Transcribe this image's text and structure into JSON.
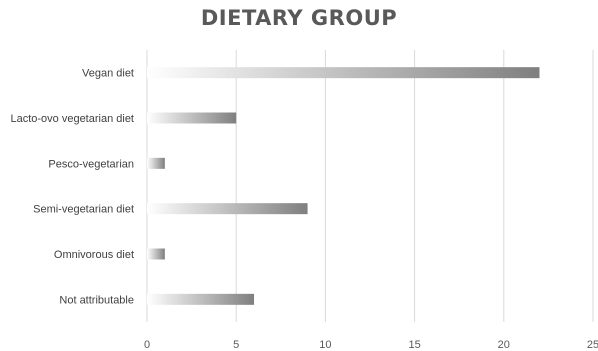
{
  "chart_data": {
    "type": "bar",
    "orientation": "horizontal",
    "title": "DIETARY GROUP",
    "categories": [
      "Vegan diet",
      "Lacto-ovo vegetarian diet",
      "Pesco-vegetarian",
      "Semi-vegetarian diet",
      "Omnivorous diet",
      "Not attributable"
    ],
    "values": [
      22,
      5,
      1,
      9,
      1,
      6
    ],
    "xlim": [
      0,
      25
    ],
    "xticks": [
      0,
      5,
      10,
      15,
      20,
      25
    ],
    "grid": true,
    "legend": "none",
    "colors": {
      "bar_start": "#ffffff",
      "bar_end": "#7f7f7f",
      "grid": "#d9d9d9",
      "title": "#595959",
      "text": "#404040"
    }
  }
}
